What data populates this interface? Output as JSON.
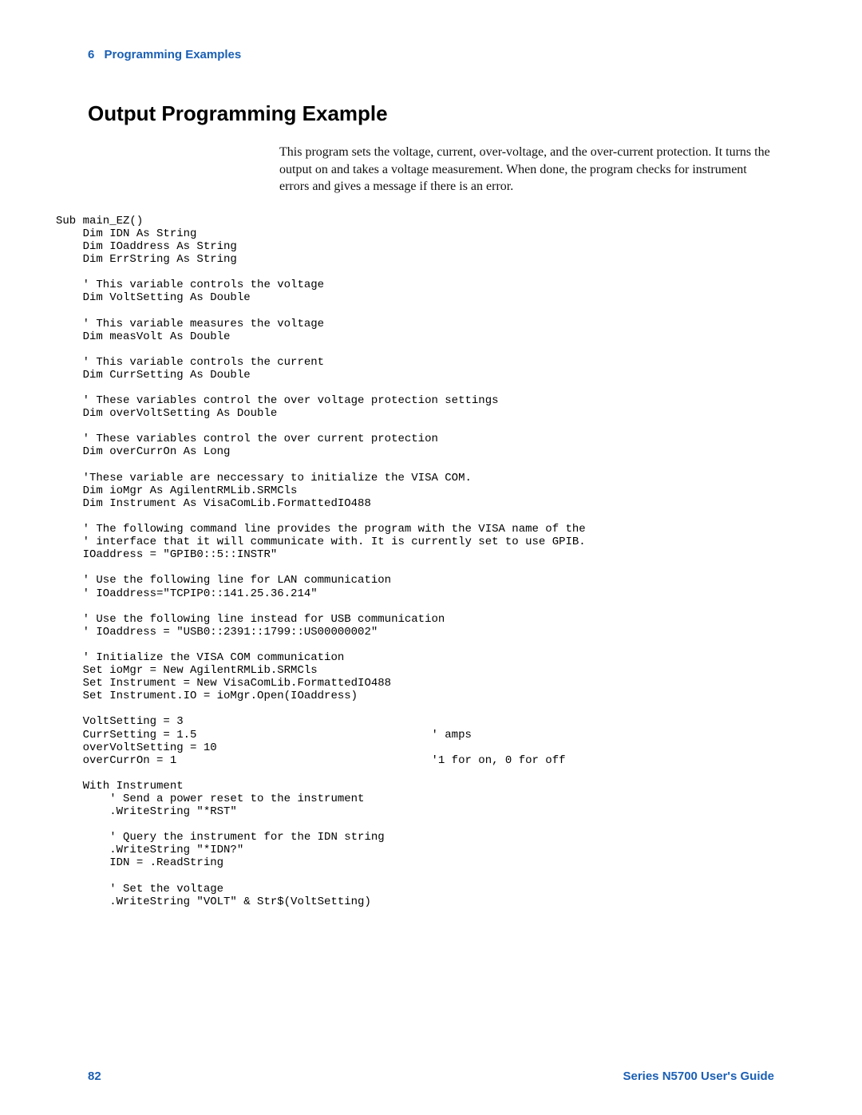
{
  "header": {
    "chapter_number": "6",
    "chapter_name": "Programming Examples"
  },
  "section_title": "Output Programming Example",
  "intro_paragraph": "This program sets the voltage, current, over-voltage, and the over-current protection. It turns the output on and takes a voltage measurement. When done, the program checks for instrument errors and gives a message if there is an error.",
  "code": "Sub main_EZ()\n    Dim IDN As String\n    Dim IOaddress As String\n    Dim ErrString As String\n\n    ' This variable controls the voltage\n    Dim VoltSetting As Double\n\n    ' This variable measures the voltage\n    Dim measVolt As Double\n\n    ' This variable controls the current\n    Dim CurrSetting As Double\n\n    ' These variables control the over voltage protection settings\n    Dim overVoltSetting As Double\n\n    ' These variables control the over current protection\n    Dim overCurrOn As Long\n\n    'These variable are neccessary to initialize the VISA COM.\n    Dim ioMgr As AgilentRMLib.SRMCls\n    Dim Instrument As VisaComLib.FormattedIO488\n\n    ' The following command line provides the program with the VISA name of the\n    ' interface that it will communicate with. It is currently set to use GPIB.\n    IOaddress = \"GPIB0::5::INSTR\"\n\n    ' Use the following line for LAN communication\n    ' IOaddress=\"TCPIP0::141.25.36.214\"\n\n    ' Use the following line instead for USB communication\n    ' IOaddress = \"USB0::2391::1799::US00000002\"\n\n    ' Initialize the VISA COM communication\n    Set ioMgr = New AgilentRMLib.SRMCls\n    Set Instrument = New VisaComLib.FormattedIO488\n    Set Instrument.IO = ioMgr.Open(IOaddress)\n\n    VoltSetting = 3\n    CurrSetting = 1.5                                   ' amps\n    overVoltSetting = 10\n    overCurrOn = 1                                      '1 for on, 0 for off\n\n    With Instrument\n        ' Send a power reset to the instrument\n        .WriteString \"*RST\"\n\n        ' Query the instrument for the IDN string\n        .WriteString \"*IDN?\"\n        IDN = .ReadString\n\n        ' Set the voltage\n        .WriteString \"VOLT\" & Str$(VoltSetting)",
  "footer": {
    "page_number": "82",
    "guide_name": "Series N5700 User's Guide"
  },
  "colors": {
    "accent": "#1a5fb4",
    "text": "#000000",
    "background": "#ffffff"
  },
  "typography": {
    "header_fontsize": 15,
    "title_fontsize": 26,
    "body_fontsize": 16,
    "code_fontsize": 14,
    "footer_fontsize": 15
  }
}
